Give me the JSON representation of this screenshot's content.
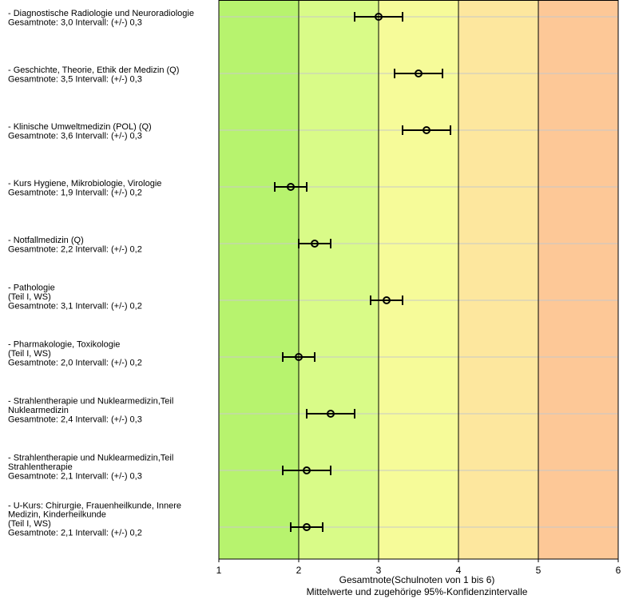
{
  "chart_data": {
    "type": "scatter",
    "variant": "horizontal-error-bars",
    "xlim": [
      1,
      6
    ],
    "xticks": [
      "1",
      "2",
      "3",
      "4",
      "5",
      "6"
    ],
    "xlabel": "Gesamtnote(Schulnoten von 1 bis 6)",
    "subtitle": "Mittelwerte und zugehörige 95%-Konfidenzintervalle",
    "grid": "vertical lines at each grade, horizontal lines at each item",
    "bands": [
      {
        "from": 1,
        "to": 2,
        "color": "#b7f36e"
      },
      {
        "from": 2,
        "to": 3,
        "color": "#d9fb88"
      },
      {
        "from": 3,
        "to": 4,
        "color": "#f6fb99"
      },
      {
        "from": 4,
        "to": 5,
        "color": "#fde79e"
      },
      {
        "from": 5,
        "to": 6,
        "color": "#fdc897"
      }
    ],
    "items": [
      {
        "lines": [
          "- Diagnostische Radiologie und Neuroradiologie",
          "Gesamtnote: 3,0 Intervall: (+/-) 0,3"
        ],
        "mean": 3.0,
        "ci": 0.3
      },
      {
        "lines": [
          "- Geschichte, Theorie, Ethik der Medizin (Q)",
          "Gesamtnote: 3,5 Intervall: (+/-) 0,3"
        ],
        "mean": 3.5,
        "ci": 0.3
      },
      {
        "lines": [
          "- Klinische Umweltmedizin (POL) (Q)",
          "Gesamtnote: 3,6 Intervall: (+/-) 0,3"
        ],
        "mean": 3.6,
        "ci": 0.3
      },
      {
        "lines": [
          "- Kurs Hygiene, Mikrobiologie, Virologie",
          "Gesamtnote: 1,9 Intervall: (+/-) 0,2"
        ],
        "mean": 1.9,
        "ci": 0.2
      },
      {
        "lines": [
          "- Notfallmedizin (Q)",
          "Gesamtnote: 2,2 Intervall: (+/-) 0,2"
        ],
        "mean": 2.2,
        "ci": 0.2
      },
      {
        "lines": [
          "- Pathologie",
          "(Teil I, WS)",
          "Gesamtnote: 3,1 Intervall: (+/-) 0,2"
        ],
        "mean": 3.1,
        "ci": 0.2
      },
      {
        "lines": [
          "- Pharmakologie, Toxikologie",
          "(Teil I, WS)",
          "Gesamtnote: 2,0 Intervall: (+/-) 0,2"
        ],
        "mean": 2.0,
        "ci": 0.2
      },
      {
        "lines": [
          "- Strahlentherapie und Nuklearmedizin,Teil",
          "Nuklearmedizin",
          "Gesamtnote: 2,4 Intervall: (+/-) 0,3"
        ],
        "mean": 2.4,
        "ci": 0.3
      },
      {
        "lines": [
          "- Strahlentherapie und Nuklearmedizin,Teil",
          "Strahlentherapie",
          "Gesamtnote: 2,1 Intervall: (+/-) 0,3"
        ],
        "mean": 2.1,
        "ci": 0.3
      },
      {
        "lines": [
          "- U-Kurs: Chirurgie, Frauenheilkunde, Innere",
          "Medizin, Kinderheilkunde",
          "(Teil I, WS)",
          "Gesamtnote: 2,1 Intervall: (+/-) 0,2"
        ],
        "mean": 2.1,
        "ci": 0.2
      }
    ]
  }
}
